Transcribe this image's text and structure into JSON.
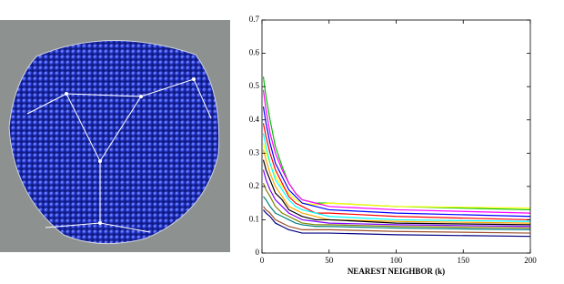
{
  "chart_data": {
    "type": "line",
    "xlabel": "NEAREST NEIGHBOR (k)",
    "x": [
      1,
      3,
      6,
      10,
      15,
      20,
      25,
      30,
      40,
      50,
      100,
      200
    ],
    "xlim": [
      0,
      200
    ],
    "xticks": [
      0,
      50,
      100,
      150,
      200
    ],
    "ylim": [
      0,
      0.7
    ],
    "yticks": [
      0,
      0.1,
      0.2,
      0.3,
      0.4,
      0.5,
      0.6,
      0.7
    ],
    "series": [
      {
        "color": "#00c000",
        "values": [
          0.53,
          0.47,
          0.4,
          0.32,
          0.26,
          0.21,
          0.18,
          0.16,
          0.15,
          0.15,
          0.14,
          0.13
        ]
      },
      {
        "color": "#ffff00",
        "values": [
          0.33,
          0.3,
          0.27,
          0.23,
          0.2,
          0.18,
          0.16,
          0.15,
          0.145,
          0.15,
          0.14,
          0.135
        ]
      },
      {
        "color": "#ff00ff",
        "values": [
          0.49,
          0.43,
          0.36,
          0.3,
          0.25,
          0.21,
          0.18,
          0.16,
          0.15,
          0.14,
          0.13,
          0.12
        ]
      },
      {
        "color": "#0000ff",
        "values": [
          0.44,
          0.39,
          0.33,
          0.27,
          0.23,
          0.19,
          0.17,
          0.15,
          0.14,
          0.13,
          0.12,
          0.11
        ]
      },
      {
        "color": "#ff0000",
        "values": [
          0.39,
          0.35,
          0.3,
          0.25,
          0.21,
          0.17,
          0.15,
          0.14,
          0.12,
          0.12,
          0.11,
          0.1
        ]
      },
      {
        "color": "#00ffff",
        "values": [
          0.36,
          0.32,
          0.27,
          0.22,
          0.19,
          0.16,
          0.14,
          0.13,
          0.12,
          0.11,
          0.1,
          0.095
        ]
      },
      {
        "color": "#ffa500",
        "values": [
          0.31,
          0.28,
          0.24,
          0.2,
          0.17,
          0.14,
          0.13,
          0.12,
          0.11,
          0.1,
          0.095,
          0.09
        ]
      },
      {
        "color": "#000000",
        "values": [
          0.28,
          0.25,
          0.22,
          0.18,
          0.16,
          0.13,
          0.12,
          0.11,
          0.1,
          0.1,
          0.09,
          0.085
        ]
      },
      {
        "color": "#8000ff",
        "values": [
          0.25,
          0.22,
          0.19,
          0.16,
          0.14,
          0.12,
          0.11,
          0.1,
          0.095,
          0.09,
          0.085,
          0.08
        ]
      },
      {
        "color": "#808000",
        "values": [
          0.21,
          0.19,
          0.17,
          0.14,
          0.12,
          0.11,
          0.1,
          0.09,
          0.085,
          0.085,
          0.08,
          0.075
        ]
      },
      {
        "color": "#008080",
        "values": [
          0.17,
          0.16,
          0.14,
          0.12,
          0.11,
          0.1,
          0.09,
          0.085,
          0.08,
          0.08,
          0.075,
          0.07
        ]
      },
      {
        "color": "#a0522d",
        "values": [
          0.14,
          0.13,
          0.12,
          0.1,
          0.09,
          0.08,
          0.075,
          0.07,
          0.07,
          0.07,
          0.065,
          0.06
        ]
      },
      {
        "color": "#000080",
        "values": [
          0.13,
          0.12,
          0.11,
          0.09,
          0.08,
          0.07,
          0.065,
          0.06,
          0.06,
          0.06,
          0.055,
          0.05
        ]
      }
    ]
  }
}
